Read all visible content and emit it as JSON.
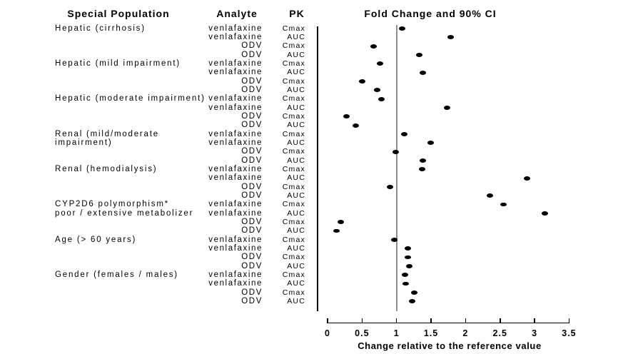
{
  "columns": {
    "population": "Special Population",
    "analyte": "Analyte",
    "pk": "PK",
    "plot": "Fold Change and 90% CI"
  },
  "chart_data": {
    "type": "scatter",
    "title": "Fold Change and 90% CI",
    "xlabel": "Change relative to the reference value",
    "xlim": [
      0,
      3.5
    ],
    "x_ticks": [
      0,
      0.5,
      1,
      1.5,
      2,
      2.5,
      3,
      3.5
    ],
    "x_tick_labels": [
      "0",
      "0.5",
      "1",
      "1.5",
      "2",
      "2.5",
      "3",
      "3.5"
    ],
    "reference_line_x": 1,
    "grid": false,
    "legend": "none",
    "marker_color": "#000000",
    "reference_line_color": "#8f8f8f",
    "groups": [
      {
        "label_lines": [
          "Hepatic (cirrhosis)"
        ],
        "rows": [
          {
            "analyte": "venlafaxine",
            "pk": "Cmax",
            "fold_change": 1.08
          },
          {
            "analyte": "venlafaxine",
            "pk": "AUC",
            "fold_change": 1.78
          },
          {
            "analyte": "ODV",
            "pk": "Cmax",
            "fold_change": 0.67
          },
          {
            "analyte": "ODV",
            "pk": "AUC",
            "fold_change": 1.33
          }
        ]
      },
      {
        "label_lines": [
          "Hepatic (mild impairment)"
        ],
        "rows": [
          {
            "analyte": "venlafaxine",
            "pk": "Cmax",
            "fold_change": 0.76
          },
          {
            "analyte": "venlafaxine",
            "pk": "AUC",
            "fold_change": 1.38
          },
          {
            "analyte": "ODV",
            "pk": "Cmax",
            "fold_change": 0.5
          },
          {
            "analyte": "ODV",
            "pk": "AUC",
            "fold_change": 0.72
          }
        ]
      },
      {
        "label_lines": [
          "Hepatic (moderate impairment)"
        ],
        "rows": [
          {
            "analyte": "venlafaxine",
            "pk": "Cmax",
            "fold_change": 0.78
          },
          {
            "analyte": "venlafaxine",
            "pk": "AUC",
            "fold_change": 1.73
          },
          {
            "analyte": "ODV",
            "pk": "Cmax",
            "fold_change": 0.27
          },
          {
            "analyte": "ODV",
            "pk": "AUC",
            "fold_change": 0.41
          }
        ]
      },
      {
        "label_lines": [
          "Renal (mild/moderate",
          "impairment)"
        ],
        "rows": [
          {
            "analyte": "venlafaxine",
            "pk": "Cmax",
            "fold_change": 1.11
          },
          {
            "analyte": "venlafaxine",
            "pk": "AUC",
            "fold_change": 1.49
          },
          {
            "analyte": "ODV",
            "pk": "Cmax",
            "fold_change": 0.99
          },
          {
            "analyte": "ODV",
            "pk": "AUC",
            "fold_change": 1.38
          }
        ]
      },
      {
        "label_lines": [
          "Renal (hemodialysis)"
        ],
        "rows": [
          {
            "analyte": "venlafaxine",
            "pk": "Cmax",
            "fold_change": 1.37
          },
          {
            "analyte": "venlafaxine",
            "pk": "AUC",
            "fold_change": 2.89
          },
          {
            "analyte": "ODV",
            "pk": "Cmax",
            "fold_change": 0.9
          },
          {
            "analyte": "ODV",
            "pk": "AUC",
            "fold_change": 2.35
          }
        ]
      },
      {
        "label_lines": [
          "CYP2D6 polymorphism*",
          "poor / extensive metabolizer"
        ],
        "rows": [
          {
            "analyte": "venlafaxine",
            "pk": "Cmax",
            "fold_change": 2.55
          },
          {
            "analyte": "venlafaxine",
            "pk": "AUC",
            "fold_change": 3.15
          },
          {
            "analyte": "ODV",
            "pk": "Cmax",
            "fold_change": 0.19
          },
          {
            "analyte": "ODV",
            "pk": "AUC",
            "fold_change": 0.13
          }
        ]
      },
      {
        "label_lines": [
          "Age (> 60 years)"
        ],
        "rows": [
          {
            "analyte": "venlafaxine",
            "pk": "Cmax",
            "fold_change": 0.97
          },
          {
            "analyte": "venlafaxine",
            "pk": "AUC",
            "fold_change": 1.16
          },
          {
            "analyte": "ODV",
            "pk": "Cmax",
            "fold_change": 1.16
          },
          {
            "analyte": "ODV",
            "pk": "AUC",
            "fold_change": 1.18
          }
        ]
      },
      {
        "label_lines": [
          "Gender (females / males)"
        ],
        "rows": [
          {
            "analyte": "venlafaxine",
            "pk": "Cmax",
            "fold_change": 1.12
          },
          {
            "analyte": "venlafaxine",
            "pk": "AUC",
            "fold_change": 1.13
          },
          {
            "analyte": "ODV",
            "pk": "Cmax",
            "fold_change": 1.26
          },
          {
            "analyte": "ODV",
            "pk": "AUC",
            "fold_change": 1.23
          }
        ]
      }
    ]
  }
}
